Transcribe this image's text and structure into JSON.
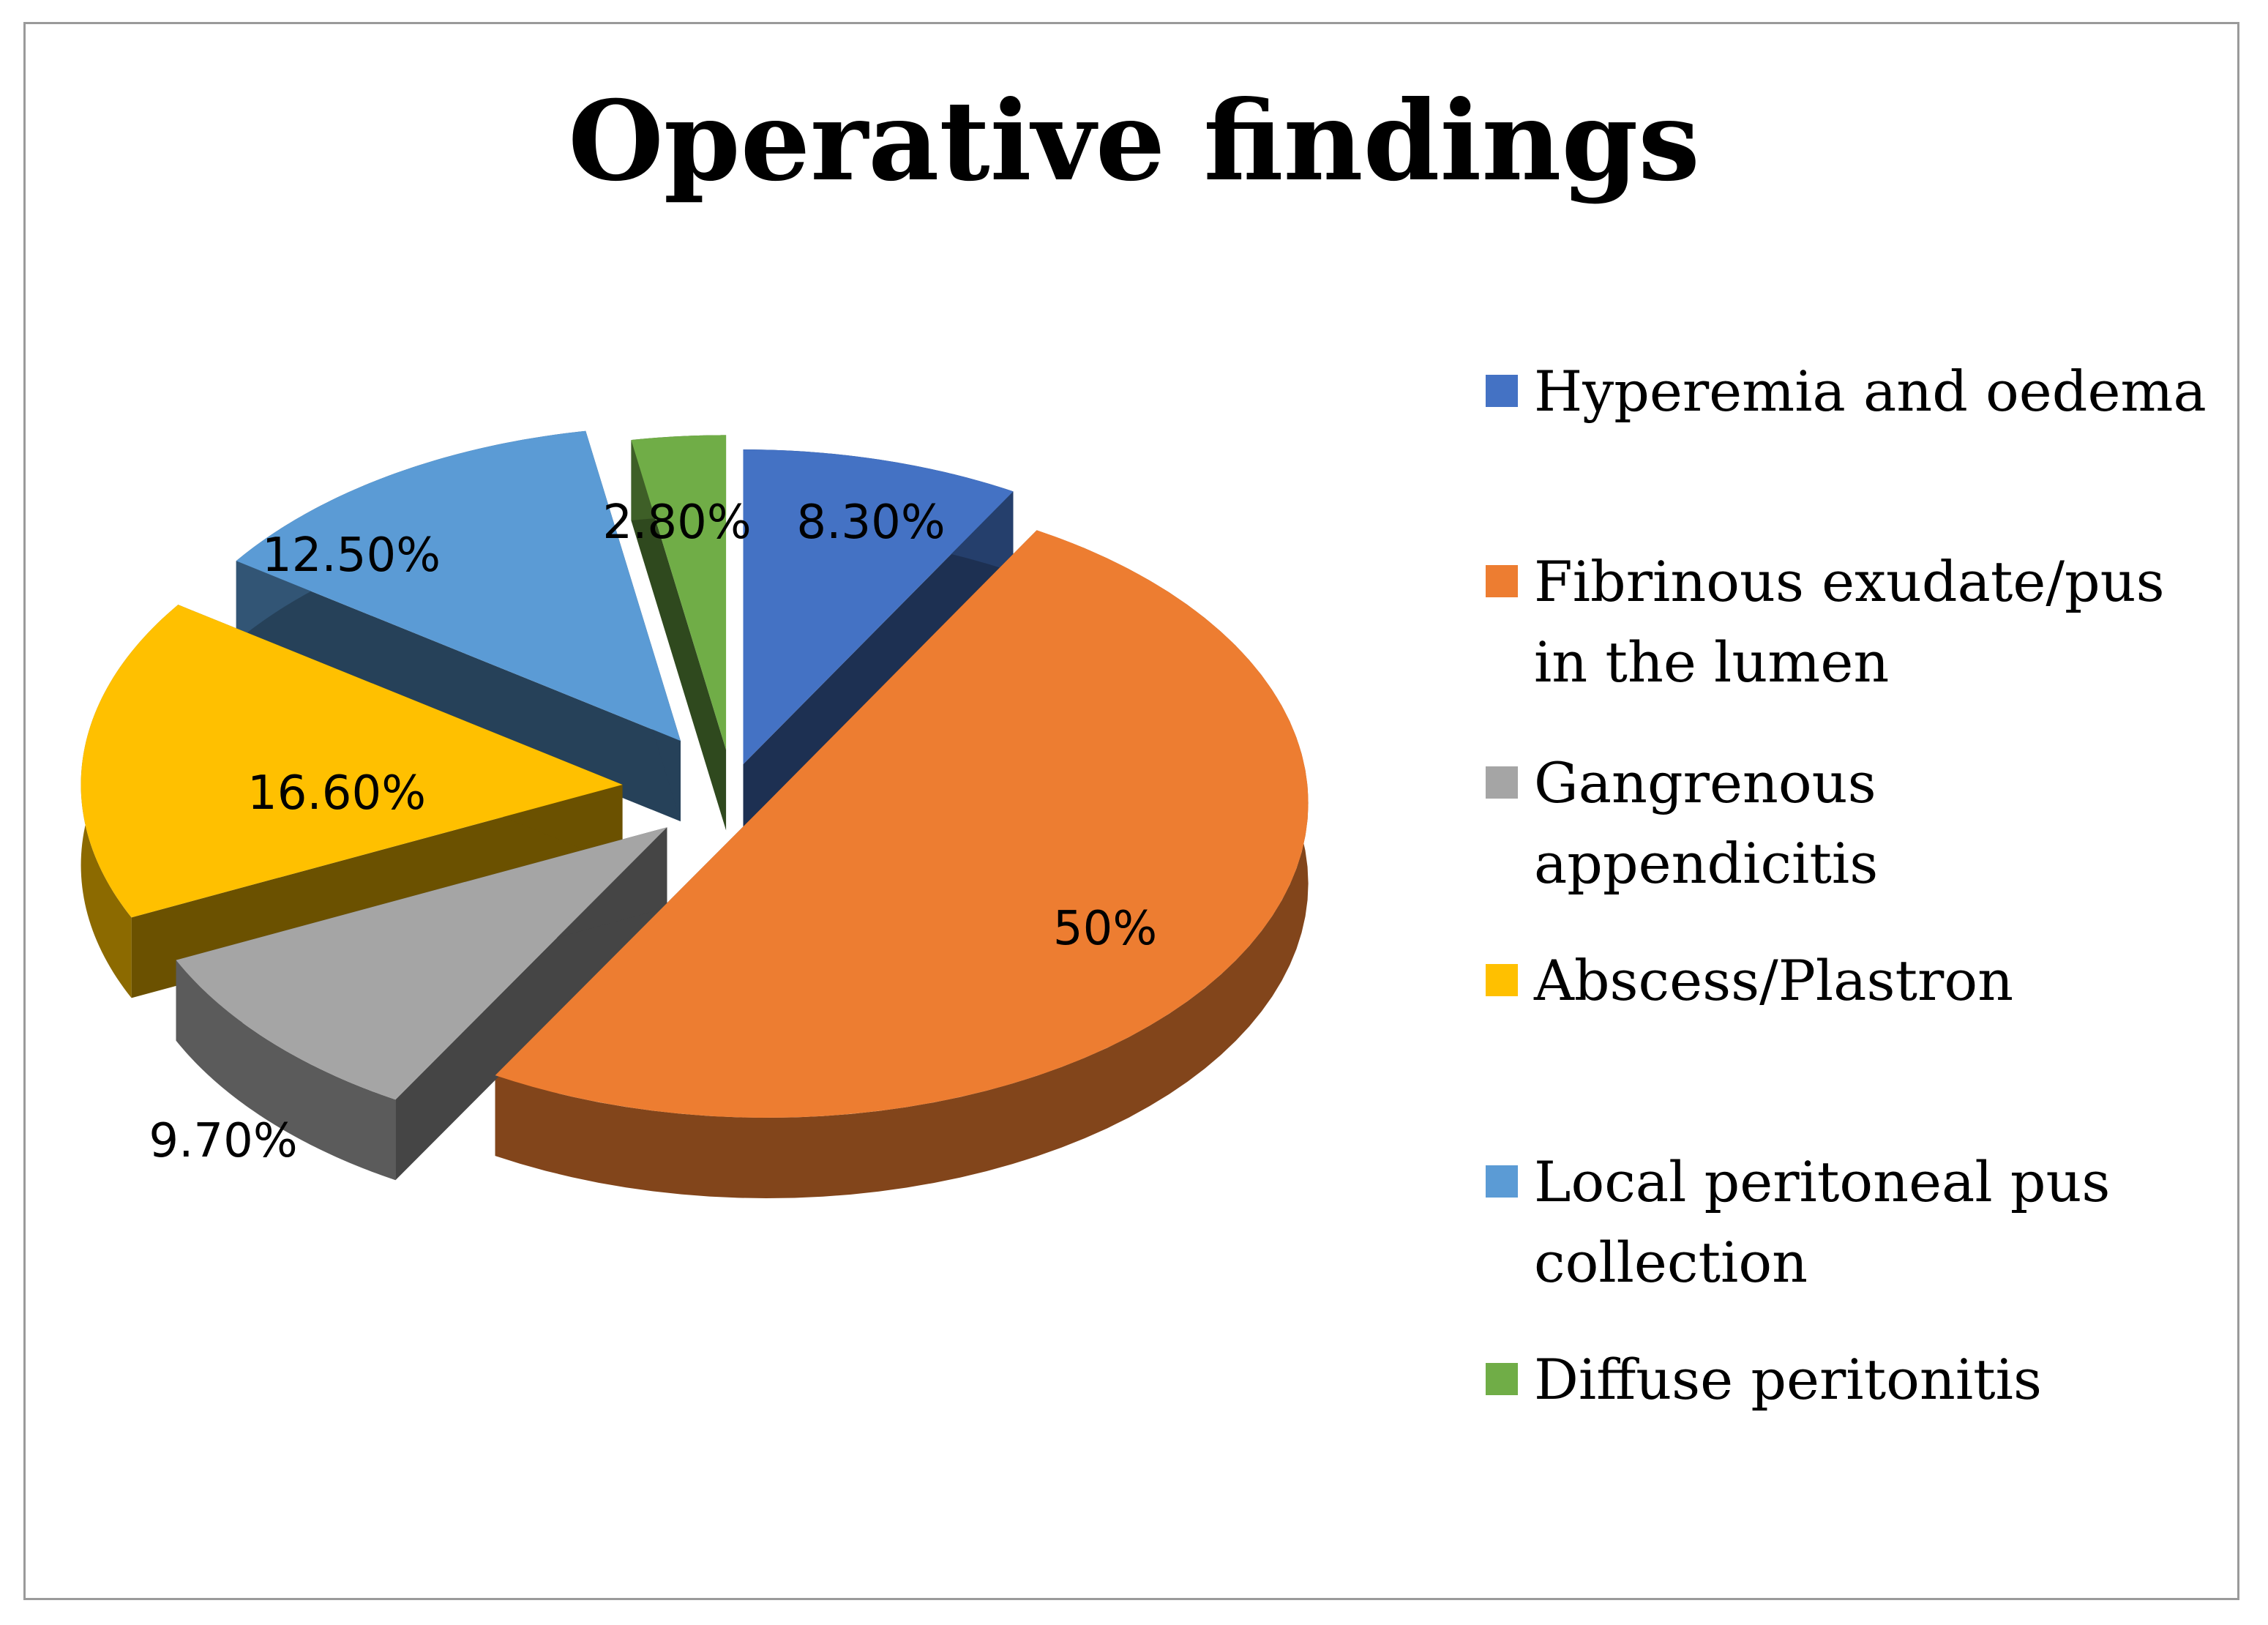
{
  "chart_data": {
    "type": "pie",
    "title": "Operative findings",
    "slices": [
      {
        "label": "Hyperemia and oedema",
        "value": 8.3,
        "data_label": "8.30%",
        "color": "#4472C4"
      },
      {
        "label": "Fibrinous exudate/pus in the lumen",
        "value": 50,
        "data_label": "50%",
        "color": "#ED7D31"
      },
      {
        "label": "Gangrenous appendicitis",
        "value": 9.7,
        "data_label": "9.70%",
        "color": "#A5A5A5"
      },
      {
        "label": "Abscess/Plastron",
        "value": 16.6,
        "data_label": "16.60%",
        "color": "#FFC000"
      },
      {
        "label": "Local peritoneal pus collection",
        "value": 12.5,
        "data_label": "12.50%",
        "color": "#5B9BD5"
      },
      {
        "label": "Diffuse peritonitis",
        "value": 2.8,
        "data_label": "2.80%",
        "color": "#70AD47"
      }
    ],
    "legend_position": "right",
    "style": "3d-exploded"
  }
}
